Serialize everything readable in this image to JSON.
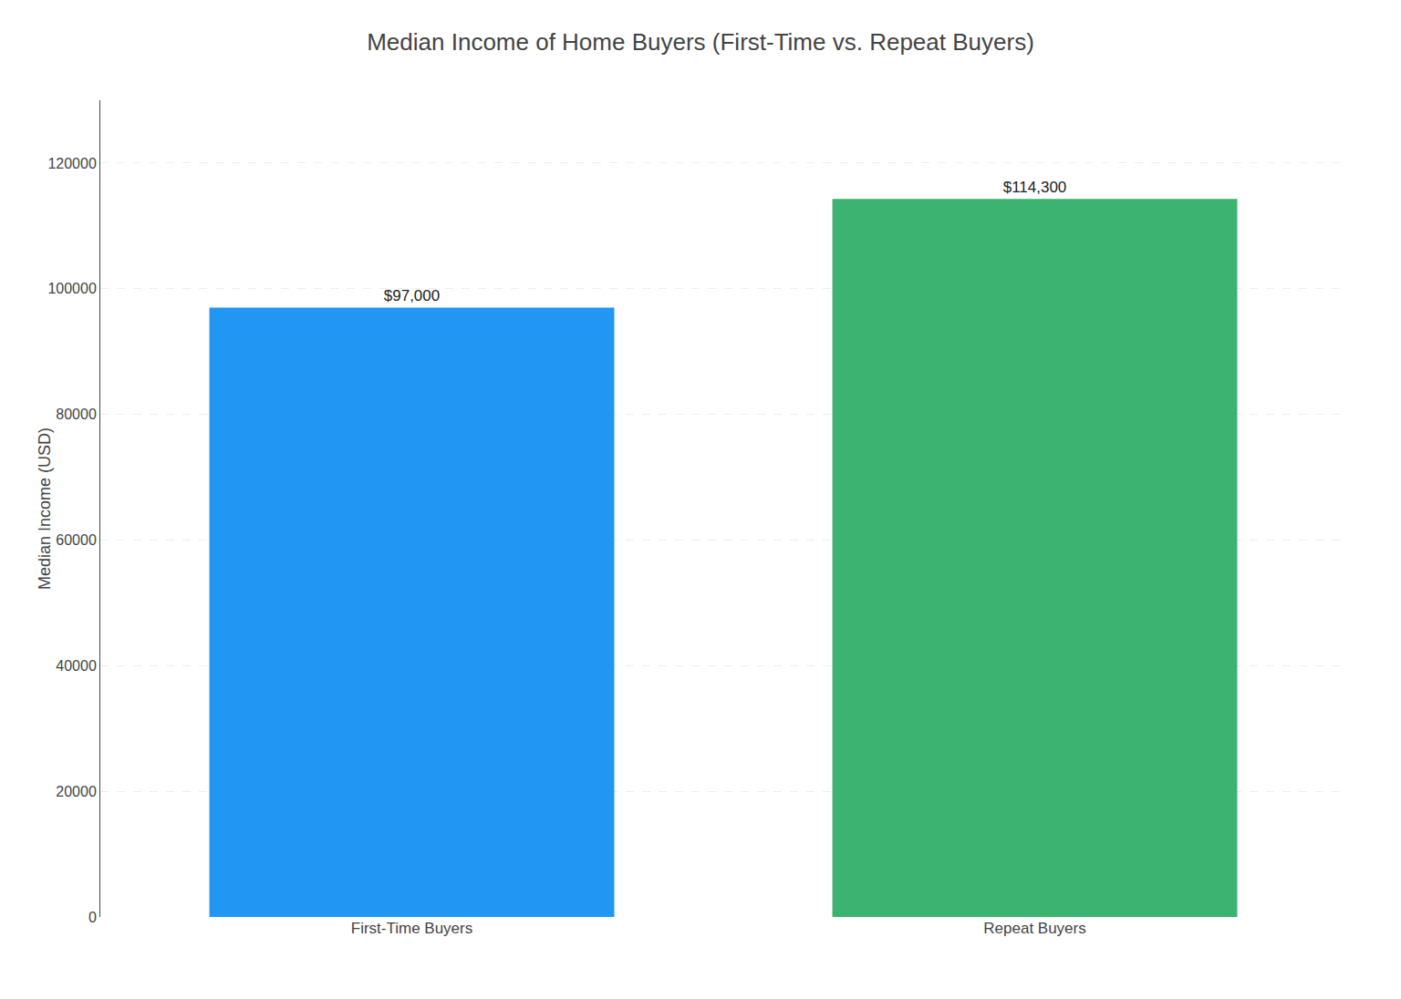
{
  "chart_data": {
    "type": "bar",
    "title": "Median Income of Home Buyers (First-Time vs. Repeat Buyers)",
    "ylabel": "Median Income (USD)",
    "categories": [
      "First-Time Buyers",
      "Repeat Buyers"
    ],
    "values": [
      97000,
      114300
    ],
    "value_labels": [
      "$97,000",
      "$114,300"
    ],
    "colors": [
      "#2196F3",
      "#3CB371"
    ],
    "ylim": [
      0,
      130000
    ],
    "yticks": [
      0,
      20000,
      40000,
      60000,
      80000,
      100000,
      120000
    ],
    "grid": true,
    "data_labels": true
  }
}
